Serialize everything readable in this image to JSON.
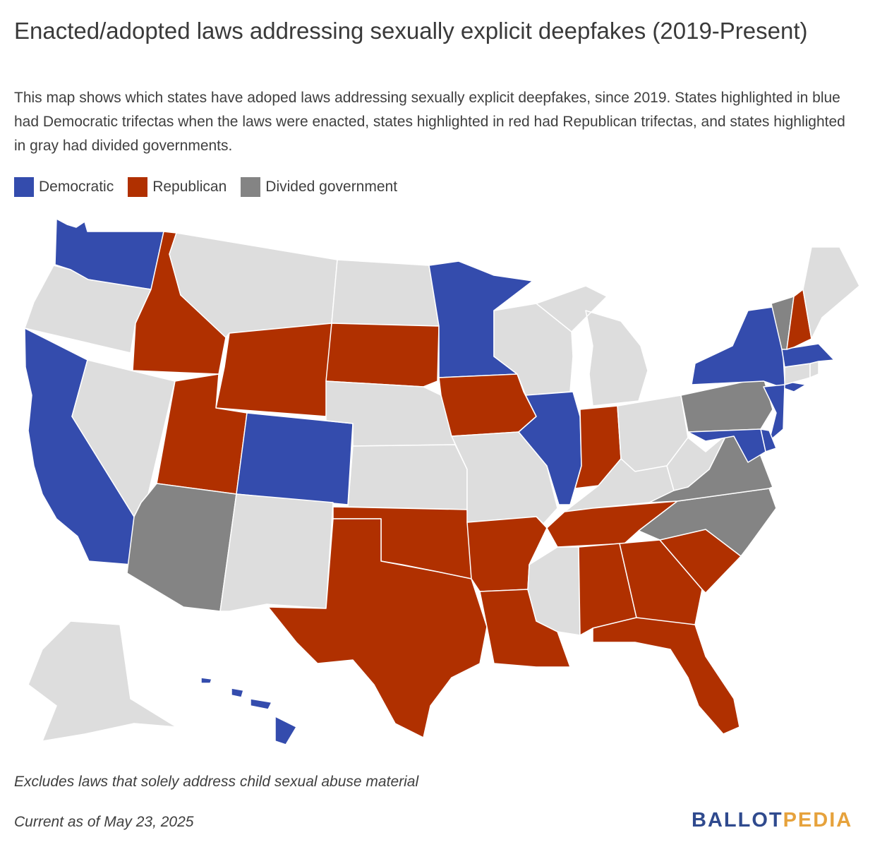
{
  "header": {
    "title": "Enacted/adopted laws addressing sexually explicit deepfakes (2019-Present)",
    "subtitle": "This map shows which states have adoped laws addressing sexually explicit deepfakes, since 2019. States highlighted in blue had Democratic trifectas when the laws were enacted, states highlighted in red had Republican trifectas, and states highlighted in gray had divided governments."
  },
  "legend": [
    {
      "label": "Democratic",
      "color": "#344cad"
    },
    {
      "label": "Republican",
      "color": "#b03000"
    },
    {
      "label": "Divided government",
      "color": "#848484"
    }
  ],
  "colors": {
    "democratic": "#344cad",
    "republican": "#b03000",
    "divided": "#848484",
    "none": "#dddddd"
  },
  "states": [
    {
      "name": "Washington",
      "status": "democratic"
    },
    {
      "name": "Oregon",
      "status": "none"
    },
    {
      "name": "California",
      "status": "democratic"
    },
    {
      "name": "Idaho",
      "status": "republican"
    },
    {
      "name": "Nevada",
      "status": "none"
    },
    {
      "name": "Montana",
      "status": "none"
    },
    {
      "name": "Wyoming",
      "status": "republican"
    },
    {
      "name": "Utah",
      "status": "republican"
    },
    {
      "name": "Arizona",
      "status": "divided"
    },
    {
      "name": "Colorado",
      "status": "democratic"
    },
    {
      "name": "New Mexico",
      "status": "none"
    },
    {
      "name": "North Dakota",
      "status": "none"
    },
    {
      "name": "South Dakota",
      "status": "republican"
    },
    {
      "name": "Nebraska",
      "status": "none"
    },
    {
      "name": "Kansas",
      "status": "none"
    },
    {
      "name": "Oklahoma",
      "status": "republican"
    },
    {
      "name": "Texas",
      "status": "republican"
    },
    {
      "name": "Minnesota",
      "status": "democratic"
    },
    {
      "name": "Iowa",
      "status": "republican"
    },
    {
      "name": "Missouri",
      "status": "none"
    },
    {
      "name": "Arkansas",
      "status": "republican"
    },
    {
      "name": "Louisiana",
      "status": "republican"
    },
    {
      "name": "Wisconsin",
      "status": "none"
    },
    {
      "name": "Illinois",
      "status": "democratic"
    },
    {
      "name": "Michigan",
      "status": "none"
    },
    {
      "name": "Indiana",
      "status": "republican"
    },
    {
      "name": "Ohio",
      "status": "none"
    },
    {
      "name": "Kentucky",
      "status": "none"
    },
    {
      "name": "Tennessee",
      "status": "republican"
    },
    {
      "name": "Mississippi",
      "status": "none"
    },
    {
      "name": "Alabama",
      "status": "republican"
    },
    {
      "name": "Georgia",
      "status": "republican"
    },
    {
      "name": "Florida",
      "status": "republican"
    },
    {
      "name": "South Carolina",
      "status": "republican"
    },
    {
      "name": "North Carolina",
      "status": "divided"
    },
    {
      "name": "Virginia",
      "status": "divided"
    },
    {
      "name": "West Virginia",
      "status": "none"
    },
    {
      "name": "Pennsylvania",
      "status": "divided"
    },
    {
      "name": "New York",
      "status": "democratic"
    },
    {
      "name": "New Jersey",
      "status": "democratic"
    },
    {
      "name": "Delaware",
      "status": "democratic"
    },
    {
      "name": "Maryland",
      "status": "democratic"
    },
    {
      "name": "Connecticut",
      "status": "none"
    },
    {
      "name": "Rhode Island",
      "status": "none"
    },
    {
      "name": "Massachusetts",
      "status": "democratic"
    },
    {
      "name": "Vermont",
      "status": "divided"
    },
    {
      "name": "New Hampshire",
      "status": "republican"
    },
    {
      "name": "Maine",
      "status": "none"
    },
    {
      "name": "Alaska",
      "status": "none"
    },
    {
      "name": "Hawaii",
      "status": "democratic"
    }
  ],
  "footer": {
    "note": "Excludes laws that solely address child sexual abuse material",
    "current_as_of": "Current as of May 23, 2025",
    "logo_part1": "BALLOT",
    "logo_part2": "PEDIA"
  }
}
